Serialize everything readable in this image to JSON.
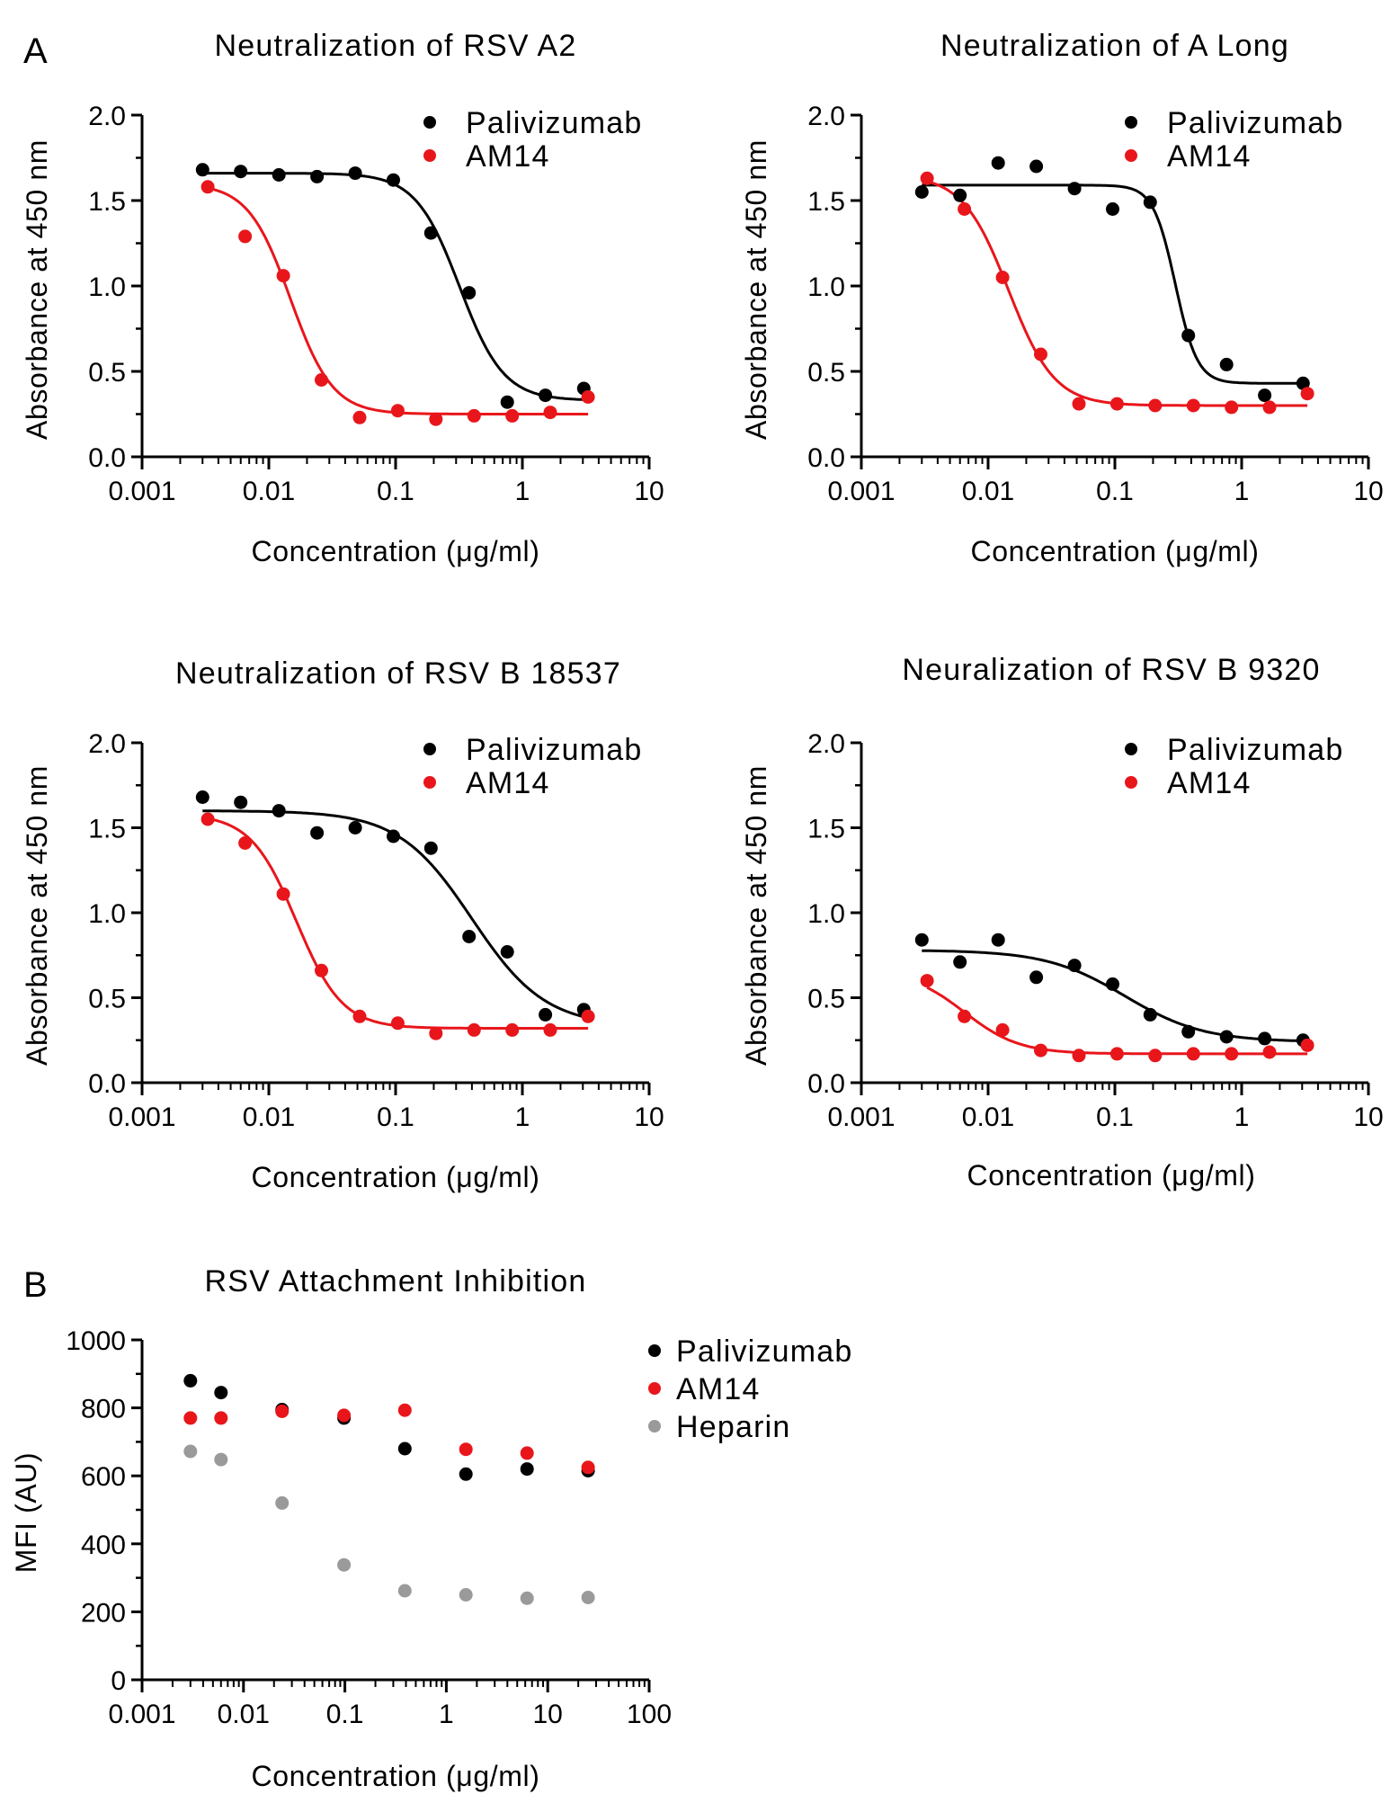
{
  "panel_labels": {
    "a": "A",
    "b": "B"
  },
  "colors": {
    "palivizumab": "#000000",
    "am14": "#e8161b",
    "heparin": "#9a9a9a",
    "axis": "#000000"
  },
  "chart_data": [
    {
      "id": "a2",
      "type": "scatter",
      "fit": "sigmoid",
      "title": "Neutralization of RSV A2",
      "xlabel": "Concentration (μg/ml)",
      "ylabel": "Absorbance at 450 nm",
      "xscale": "log",
      "xlim": [
        0.001,
        10
      ],
      "ylim": [
        0,
        2.0
      ],
      "xticks": [
        "0.001",
        "0.01",
        "0.1",
        "1",
        "10"
      ],
      "yticks": [
        "0.0",
        "0.5",
        "1.0",
        "1.5",
        "2.0"
      ],
      "legend_position": "top-right",
      "series": [
        {
          "name": "Palivizumab",
          "color": "#000000",
          "x": [
            0.003,
            0.006,
            0.012,
            0.024,
            0.048,
            0.096,
            0.19,
            0.38,
            0.76,
            1.52,
            3.05
          ],
          "y": [
            1.68,
            1.67,
            1.65,
            1.64,
            1.66,
            1.62,
            1.31,
            0.96,
            0.32,
            0.36,
            0.4
          ],
          "fit_params": {
            "top": 1.66,
            "bottom": 0.33,
            "ec50": 0.32,
            "hill": 2.5,
            "x_start": 0.003,
            "x_end": 3.05
          }
        },
        {
          "name": "AM14",
          "color": "#e8161b",
          "x": [
            0.0033,
            0.0065,
            0.013,
            0.026,
            0.052,
            0.104,
            0.208,
            0.416,
            0.832,
            1.66,
            3.3
          ],
          "y": [
            1.58,
            1.29,
            1.06,
            0.45,
            0.23,
            0.27,
            0.22,
            0.24,
            0.24,
            0.26,
            0.35
          ],
          "fit_params": {
            "top": 1.6,
            "bottom": 0.25,
            "ec50": 0.0148,
            "hill": 2.6,
            "x_start": 0.0033,
            "x_end": 3.3
          }
        }
      ]
    },
    {
      "id": "along",
      "type": "scatter",
      "fit": "sigmoid",
      "title": "Neutralization of A Long",
      "xlabel": "Concentration (μg/ml)",
      "ylabel": "Absorbance at 450 nm",
      "xscale": "log",
      "xlim": [
        0.001,
        10
      ],
      "ylim": [
        0,
        2.0
      ],
      "xticks": [
        "0.001",
        "0.01",
        "0.1",
        "1",
        "10"
      ],
      "yticks": [
        "0.0",
        "0.5",
        "1.0",
        "1.5",
        "2.0"
      ],
      "legend_position": "top-right",
      "series": [
        {
          "name": "Palivizumab",
          "color": "#000000",
          "x": [
            0.003,
            0.006,
            0.012,
            0.024,
            0.048,
            0.096,
            0.19,
            0.38,
            0.76,
            1.52,
            3.05
          ],
          "y": [
            1.55,
            1.53,
            1.72,
            1.7,
            1.57,
            1.45,
            1.49,
            0.71,
            0.54,
            0.36,
            0.43
          ],
          "fit_params": {
            "top": 1.59,
            "bottom": 0.43,
            "ec50": 0.3,
            "hill": 5.0,
            "x_start": 0.003,
            "x_end": 3.05
          }
        },
        {
          "name": "AM14",
          "color": "#e8161b",
          "x": [
            0.0033,
            0.0065,
            0.013,
            0.026,
            0.052,
            0.104,
            0.208,
            0.416,
            0.832,
            1.66,
            3.3
          ],
          "y": [
            1.63,
            1.45,
            1.05,
            0.6,
            0.31,
            0.31,
            0.3,
            0.3,
            0.29,
            0.29,
            0.37
          ],
          "fit_params": {
            "top": 1.65,
            "bottom": 0.3,
            "ec50": 0.0145,
            "hill": 2.4,
            "x_start": 0.0033,
            "x_end": 3.3
          }
        }
      ]
    },
    {
      "id": "b18537",
      "type": "scatter",
      "fit": "sigmoid",
      "title": "Neutralization of RSV B 18537",
      "xlabel": "Concentration (μg/ml)",
      "ylabel": "Absorbance at 450 nm",
      "xscale": "log",
      "xlim": [
        0.001,
        10
      ],
      "ylim": [
        0,
        2.0
      ],
      "xticks": [
        "0.001",
        "0.01",
        "0.1",
        "1",
        "10"
      ],
      "yticks": [
        "0.0",
        "0.5",
        "1.0",
        "1.5",
        "2.0"
      ],
      "legend_position": "top-right",
      "series": [
        {
          "name": "Palivizumab",
          "color": "#000000",
          "x": [
            0.003,
            0.006,
            0.012,
            0.024,
            0.048,
            0.096,
            0.19,
            0.38,
            0.76,
            1.52,
            3.05
          ],
          "y": [
            1.68,
            1.65,
            1.6,
            1.47,
            1.5,
            1.45,
            1.38,
            0.86,
            0.77,
            0.4,
            0.43
          ],
          "fit_params": {
            "top": 1.6,
            "bottom": 0.33,
            "ec50": 0.4,
            "hill": 1.5,
            "x_start": 0.003,
            "x_end": 3.05
          }
        },
        {
          "name": "AM14",
          "color": "#e8161b",
          "x": [
            0.0033,
            0.0065,
            0.013,
            0.026,
            0.052,
            0.104,
            0.208,
            0.416,
            0.832,
            1.66,
            3.3
          ],
          "y": [
            1.55,
            1.41,
            1.11,
            0.66,
            0.39,
            0.35,
            0.29,
            0.31,
            0.31,
            0.31,
            0.39
          ],
          "fit_params": {
            "top": 1.58,
            "bottom": 0.32,
            "ec50": 0.0165,
            "hill": 2.4,
            "x_start": 0.0033,
            "x_end": 3.3
          }
        }
      ]
    },
    {
      "id": "b9320",
      "type": "scatter",
      "fit": "sigmoid",
      "title": "Neuralization of RSV B 9320",
      "xlabel": "Concentration (μg/ml)",
      "ylabel": "Absorbance at 450 nm",
      "xscale": "log",
      "xlim": [
        0.001,
        10
      ],
      "ylim": [
        0,
        2.0
      ],
      "xticks": [
        "0.001",
        "0.01",
        "0.1",
        "1",
        "10"
      ],
      "yticks": [
        "0.0",
        "0.5",
        "1.0",
        "1.5",
        "2.0"
      ],
      "legend_position": "top-right",
      "series": [
        {
          "name": "Palivizumab",
          "color": "#000000",
          "x": [
            0.003,
            0.006,
            0.012,
            0.024,
            0.048,
            0.096,
            0.19,
            0.38,
            0.76,
            1.52,
            3.05
          ],
          "y": [
            0.84,
            0.71,
            0.84,
            0.62,
            0.69,
            0.58,
            0.4,
            0.3,
            0.27,
            0.26,
            0.25
          ],
          "fit_params": {
            "top": 0.78,
            "bottom": 0.24,
            "ec50": 0.12,
            "hill": 1.4,
            "x_start": 0.003,
            "x_end": 3.05
          }
        },
        {
          "name": "AM14",
          "color": "#e8161b",
          "x": [
            0.0033,
            0.0065,
            0.013,
            0.026,
            0.052,
            0.104,
            0.208,
            0.416,
            0.832,
            1.66,
            3.3
          ],
          "y": [
            0.6,
            0.39,
            0.31,
            0.19,
            0.16,
            0.17,
            0.16,
            0.17,
            0.17,
            0.18,
            0.22
          ],
          "fit_params": {
            "top": 0.66,
            "bottom": 0.17,
            "ec50": 0.0065,
            "hill": 2.0,
            "x_start": 0.0033,
            "x_end": 3.3
          }
        }
      ]
    },
    {
      "id": "attach",
      "type": "scatter",
      "title": "RSV Attachment Inhibition",
      "xlabel": "Concentration (μg/ml)",
      "ylabel": "MFI (AU)",
      "xscale": "log",
      "xlim": [
        0.001,
        100
      ],
      "ylim": [
        0,
        1000
      ],
      "xticks": [
        "0.001",
        "0.01",
        "0.1",
        "1",
        "10",
        "100"
      ],
      "yticks": [
        "0",
        "200",
        "400",
        "600",
        "800",
        "1000"
      ],
      "legend_position": "right",
      "series": [
        {
          "name": "Palivizumab",
          "color": "#000000",
          "x": [
            0.003,
            0.006,
            0.024,
            0.098,
            0.39,
            1.56,
            6.25,
            25
          ],
          "y": [
            880,
            845,
            795,
            770,
            680,
            605,
            620,
            615
          ]
        },
        {
          "name": "AM14",
          "color": "#e8161b",
          "x": [
            0.003,
            0.006,
            0.024,
            0.098,
            0.39,
            1.56,
            6.25,
            25
          ],
          "y": [
            770,
            770,
            790,
            778,
            793,
            678,
            667,
            625
          ]
        },
        {
          "name": "Heparin",
          "color": "#9a9a9a",
          "x": [
            0.003,
            0.006,
            0.024,
            0.098,
            0.39,
            1.56,
            6.25,
            25
          ],
          "y": [
            672,
            648,
            520,
            338,
            262,
            250,
            240,
            242
          ]
        }
      ]
    }
  ]
}
